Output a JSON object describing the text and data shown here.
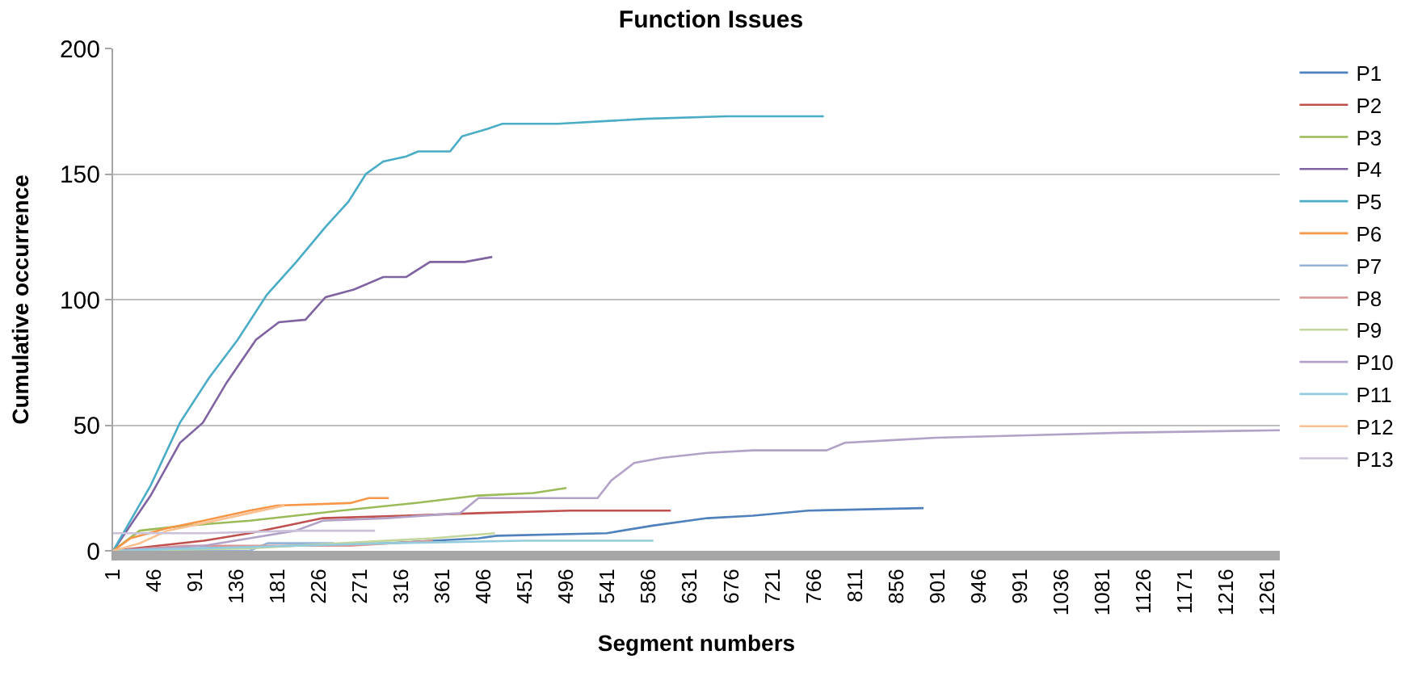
{
  "chart_data": {
    "type": "line",
    "title": "Function Issues",
    "xlabel": "Segment numbers",
    "ylabel": "Cumulative occurrence",
    "xlim": [
      1,
      1275
    ],
    "xticks": [
      1,
      46,
      91,
      136,
      181,
      226,
      271,
      316,
      361,
      406,
      451,
      496,
      541,
      586,
      631,
      676,
      721,
      766,
      811,
      856,
      901,
      946,
      991,
      1036,
      1081,
      1126,
      1171,
      1216,
      1261
    ],
    "ylim": [
      0,
      200
    ],
    "yticks": [
      0,
      50,
      100,
      150,
      200
    ],
    "grid": "y",
    "legend": "right",
    "marker": "none",
    "line_style": "solid",
    "series": [
      {
        "name": "P1",
        "color": "#4f81bd",
        "x": [
          1,
          100,
          200,
          300,
          400,
          420,
          540,
          590,
          650,
          700,
          760,
          886
        ],
        "values": [
          0,
          1,
          2,
          3,
          5,
          6,
          7,
          10,
          13,
          14,
          16,
          17
        ]
      },
      {
        "name": "P2",
        "color": "#c0504d",
        "x": [
          1,
          50,
          100,
          150,
          190,
          230,
          320,
          400,
          500,
          610
        ],
        "values": [
          0,
          2,
          4,
          7,
          10,
          13,
          14,
          15,
          16,
          16
        ]
      },
      {
        "name": "P3",
        "color": "#9bbb59",
        "x": [
          1,
          30,
          80,
          150,
          200,
          250,
          330,
          400,
          460,
          496
        ],
        "values": [
          0,
          8,
          10,
          12,
          14,
          16,
          19,
          22,
          23,
          25
        ]
      },
      {
        "name": "P4",
        "color": "#8064a2",
        "x": [
          1,
          42,
          74,
          99,
          125,
          157,
          182,
          211,
          233,
          264,
          296,
          321,
          347,
          385,
          415
        ],
        "values": [
          0,
          22,
          43,
          51,
          67,
          84,
          91,
          92,
          101,
          104,
          109,
          109,
          115,
          115,
          117
        ]
      },
      {
        "name": "P5",
        "color": "#4bacc6",
        "x": [
          1,
          42,
          74,
          106,
          137,
          169,
          201,
          233,
          258,
          277,
          296,
          321,
          334,
          369,
          382,
          410,
          426,
          487,
          582,
          671,
          777
        ],
        "values": [
          0,
          26,
          51,
          69,
          84,
          102,
          115,
          129,
          139,
          150,
          155,
          157,
          159,
          159,
          165,
          168,
          170,
          170,
          172,
          173,
          173
        ]
      },
      {
        "name": "P6",
        "color": "#f79646",
        "x": [
          1,
          20,
          60,
          100,
          150,
          180,
          260,
          280,
          302
        ],
        "values": [
          0,
          5,
          9,
          12,
          16,
          18,
          19,
          21,
          21
        ]
      },
      {
        "name": "P7",
        "color": "#95b3d7",
        "x": [
          1,
          150,
          170,
          242
        ],
        "values": [
          0,
          0,
          3,
          3
        ]
      },
      {
        "name": "P8",
        "color": "#da9694",
        "x": [
          1,
          80,
          260,
          350
        ],
        "values": [
          0,
          2,
          2,
          4
        ]
      },
      {
        "name": "P9",
        "color": "#c3d69b",
        "x": [
          1,
          150,
          250,
          350,
          418
        ],
        "values": [
          0,
          1,
          3,
          5,
          7
        ]
      },
      {
        "name": "P10",
        "color": "#b2a2c7",
        "x": [
          1,
          100,
          150,
          200,
          230,
          300,
          380,
          400,
          450,
          530,
          545,
          570,
          600,
          650,
          700,
          780,
          800,
          850,
          900,
          1000,
          1100,
          1275
        ],
        "values": [
          0,
          2,
          5,
          8,
          12,
          13,
          15,
          21,
          21,
          21,
          28,
          35,
          37,
          39,
          40,
          40,
          43,
          44,
          45,
          46,
          47,
          48
        ]
      },
      {
        "name": "P11",
        "color": "#93cddd",
        "x": [
          1,
          100,
          200,
          300,
          450,
          591
        ],
        "values": [
          0,
          1,
          2,
          3,
          4,
          4
        ]
      },
      {
        "name": "P12",
        "color": "#fac090",
        "x": [
          1,
          30,
          60,
          100,
          150,
          188
        ],
        "values": [
          0,
          3,
          8,
          11,
          15,
          18
        ]
      },
      {
        "name": "P13",
        "color": "#ccc1da",
        "x": [
          1,
          100,
          200,
          287
        ],
        "values": [
          7,
          7,
          8,
          8
        ]
      }
    ]
  }
}
